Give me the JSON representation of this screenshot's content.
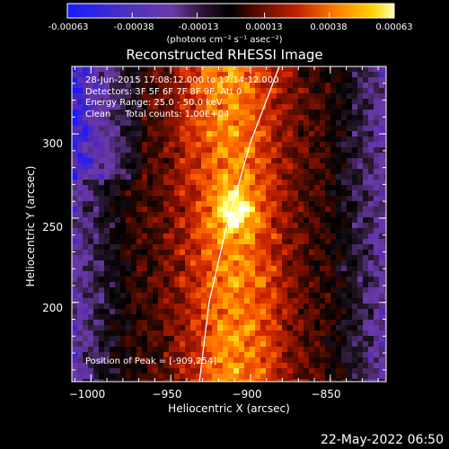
{
  "chart_data": {
    "type": "heatmap",
    "title": "Reconstructed RHESSI Image",
    "xlabel": "Heliocentric X (arcsec)",
    "ylabel": "Heliocentric Y (arcsec)",
    "xlim": [
      -1012,
      -815
    ],
    "ylim": [
      153,
      340
    ],
    "xticks": [
      -1000,
      -950,
      -900,
      -850
    ],
    "xtick_labels": [
      "−1000",
      "−950",
      "−900",
      "−850"
    ],
    "yticks": [
      200,
      250,
      300
    ],
    "ytick_labels": [
      "200",
      "250",
      "300"
    ],
    "peak": {
      "x": -909,
      "y": 254
    },
    "limb_curve": [
      [
        -932,
        153
      ],
      [
        -926,
        200
      ],
      [
        -915,
        245
      ],
      [
        -900,
        295
      ],
      [
        -882,
        340
      ]
    ],
    "info_lines": [
      "28-Jun-2015 17:08:12.000 to 17:14:12.000",
      "Detectors: 3F 5F 6F 7F 8F 9F, Att 0",
      "Energy Range: 25.0 - 50.0 keV",
      "Clean     Total counts: 1.00E+04"
    ],
    "peak_label": "Position of Peak = [-909,254]",
    "colorbar": {
      "range": [
        -0.00063,
        0.00063
      ],
      "ticks": [
        -0.00063,
        -0.00038,
        -0.00013,
        0.00013,
        0.00038,
        0.00063
      ],
      "tick_labels": [
        "-0.00063",
        "-0.00038",
        "-0.00013",
        "0.00013",
        "0.00038",
        "0.00063"
      ],
      "unit_label": "(photons cm⁻² s⁻¹ asec⁻²)"
    },
    "colormap": [
      "#1a1aff",
      "#5a2cb0",
      "#6a3aa8",
      "#2a1a30",
      "#000000",
      "#3a0a00",
      "#8a1200",
      "#d02a00",
      "#ff6a00",
      "#ffb800",
      "#ffff66",
      "#ffffff"
    ],
    "grid": false
  },
  "footer": {
    "date": "22-May-2022 06:50"
  }
}
